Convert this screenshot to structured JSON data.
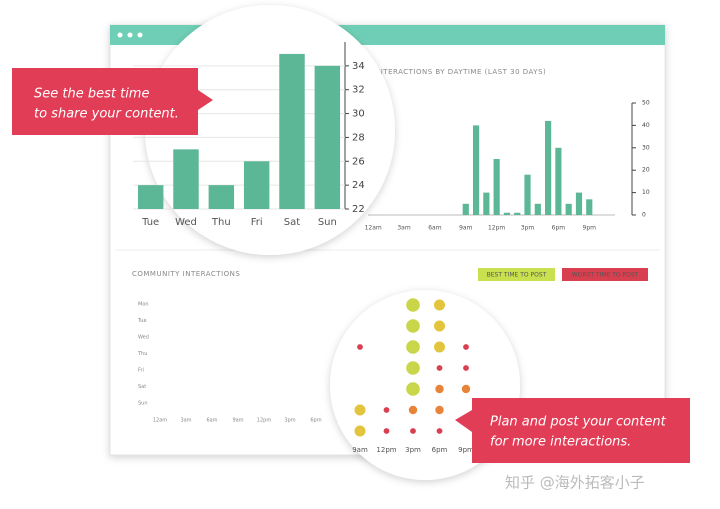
{
  "callouts": [
    {
      "lines": [
        "See the best time",
        "to share your content."
      ]
    },
    {
      "lines": [
        "Plan and post your content",
        "for more interactions."
      ]
    }
  ],
  "chart_data": [
    {
      "type": "bar",
      "color": "#5bb795",
      "grid": true,
      "categories": [
        "Tue",
        "Wed",
        "Thu",
        "Fri",
        "Sat",
        "Sun"
      ],
      "values": [
        24,
        27,
        24,
        26,
        35,
        34
      ],
      "ylim": [
        22,
        36
      ],
      "yticks": [
        22,
        24,
        26,
        28,
        30,
        32,
        34
      ]
    },
    {
      "type": "bar",
      "color": "#5bb795",
      "grid": false,
      "title": "INTERACTIONS BY DAYTIME (LAST 30 DAYS)",
      "categories": [
        "12am",
        null,
        null,
        "3am",
        null,
        null,
        "6am",
        null,
        null,
        "9am",
        null,
        null,
        "12pm",
        null,
        null,
        "3pm",
        null,
        null,
        "6pm",
        null,
        null,
        "9pm",
        null,
        null
      ],
      "values": [
        0,
        0,
        0,
        0,
        0,
        0,
        0,
        0,
        0,
        5,
        40,
        10,
        25,
        1,
        1,
        18,
        5,
        42,
        30,
        5,
        10,
        7,
        0,
        0
      ],
      "ylim": [
        0,
        50
      ],
      "yticks": [
        0,
        10,
        20,
        30,
        40,
        50
      ]
    },
    {
      "type": "bubble",
      "title": "COMMUNITY INTERACTIONS",
      "legend": [
        {
          "label": "BEST TIME TO POST",
          "color": "#c9e04f"
        },
        {
          "label": "WORST TIME TO POST",
          "color": "#d9404f"
        }
      ],
      "rows": [
        "Mon",
        "Tue",
        "Wed",
        "Thu",
        "Fri",
        "Sat",
        "Sun"
      ],
      "xlim": [
        0,
        24
      ],
      "xticks": [
        {
          "value": 0,
          "label": "12am"
        },
        {
          "value": 3,
          "label": "3am"
        },
        {
          "value": 6,
          "label": "6am"
        },
        {
          "value": 9,
          "label": "9am"
        },
        {
          "value": 12,
          "label": "12pm"
        },
        {
          "value": 15,
          "label": "3pm"
        },
        {
          "value": 18,
          "label": "6pm"
        },
        {
          "value": 21,
          "label": "9pm"
        }
      ],
      "size_colors": [
        "#d9404f",
        "#e8843a",
        "#e3c53d",
        "#c9d64a",
        "#a6cf4e"
      ],
      "x": [
        9,
        9,
        9,
        12,
        12,
        15,
        15,
        15,
        15,
        15,
        15,
        15,
        18,
        18,
        18,
        18,
        18,
        18,
        18,
        21,
        21,
        21
      ],
      "y": [
        "Wed",
        "Sat",
        "Sun",
        "Sat",
        "Sun",
        "Mon",
        "Tue",
        "Wed",
        "Thu",
        "Fri",
        "Sat",
        "Sun",
        "Mon",
        "Tue",
        "Wed",
        "Thu",
        "Fri",
        "Sat",
        "Sun",
        "Wed",
        "Thu",
        "Fri"
      ],
      "size": [
        1,
        3,
        3,
        1,
        1,
        4,
        4,
        4,
        4,
        4,
        2,
        1,
        3,
        3,
        3,
        1,
        2,
        2,
        1,
        1,
        1,
        2
      ]
    }
  ],
  "watermark": "知乎 @海外拓客小子"
}
